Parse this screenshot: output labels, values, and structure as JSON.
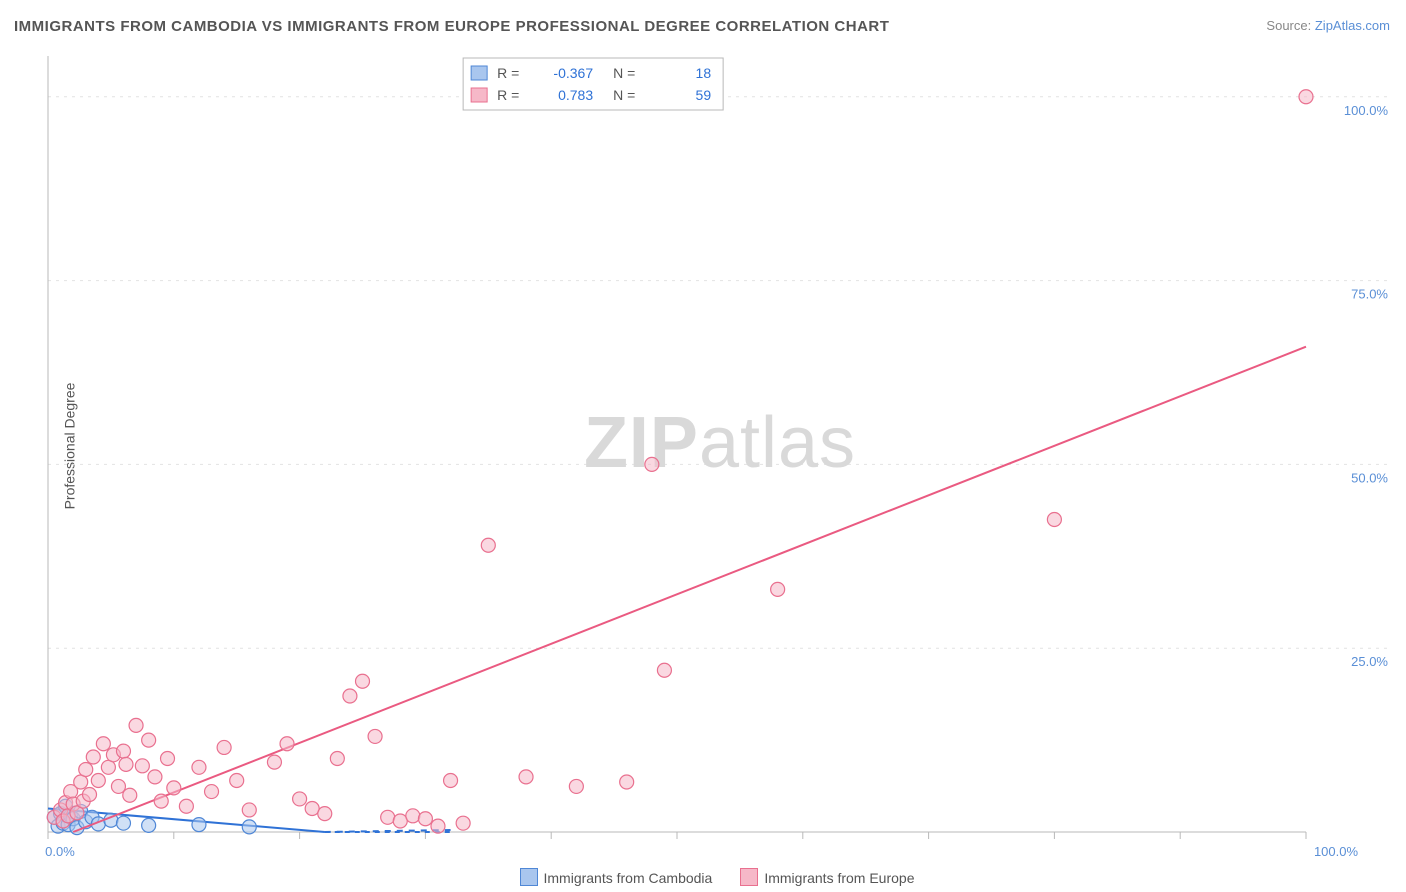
{
  "title": "IMMIGRANTS FROM CAMBODIA VS IMMIGRANTS FROM EUROPE PROFESSIONAL DEGREE CORRELATION CHART",
  "source_label": "Source:",
  "source_link": "ZipAtlas.com",
  "ylabel": "Professional Degree",
  "watermark": "ZIPatlas",
  "chart": {
    "type": "scatter",
    "xlim": [
      0,
      100
    ],
    "ylim": [
      0,
      105
    ],
    "x_major_ticks": [
      0,
      10,
      20,
      30,
      40,
      50,
      60,
      70,
      80,
      90,
      100
    ],
    "y_gridlines": [
      0,
      25,
      50,
      75,
      100
    ],
    "x_tick_labels": {
      "0": "0.0%",
      "100": "100.0%"
    },
    "y_tick_labels": {
      "25": "25.0%",
      "50": "50.0%",
      "75": "75.0%",
      "100": "100.0%"
    },
    "background_color": "#ffffff",
    "grid_color": "#e2e2e2",
    "axis_color": "#b8b8b8",
    "text_color": "#555555",
    "link_color": "#5a8fd6",
    "marker_radius": 7,
    "marker_stroke_width": 1.2,
    "series": [
      {
        "name": "Immigrants from Cambodia",
        "fill": "#a9c6ee",
        "fill_opacity": 0.55,
        "stroke": "#4f87d6",
        "r": -0.367,
        "n": 18,
        "trend": {
          "x1": 0,
          "y1": 3.2,
          "x2": 22,
          "y2": 0,
          "dashed_to_x": 32,
          "color": "#2f72d6",
          "width": 2
        },
        "points": [
          [
            0.5,
            2
          ],
          [
            0.8,
            0.8
          ],
          [
            1,
            2.5
          ],
          [
            1.2,
            1.2
          ],
          [
            1.4,
            3.5
          ],
          [
            1.6,
            1
          ],
          [
            1.8,
            2.2
          ],
          [
            2,
            1.8
          ],
          [
            2.3,
            0.6
          ],
          [
            2.6,
            2.8
          ],
          [
            3,
            1.4
          ],
          [
            3.5,
            2
          ],
          [
            4,
            1.1
          ],
          [
            5,
            1.6
          ],
          [
            6,
            1.2
          ],
          [
            8,
            0.9
          ],
          [
            12,
            1
          ],
          [
            16,
            0.7
          ]
        ]
      },
      {
        "name": "Immigrants from Europe",
        "fill": "#f6b8c8",
        "fill_opacity": 0.55,
        "stroke": "#e9708f",
        "r": 0.783,
        "n": 59,
        "trend": {
          "x1": 2,
          "y1": 0,
          "x2": 100,
          "y2": 66,
          "color": "#ea5a81",
          "width": 2
        },
        "points": [
          [
            0.5,
            2
          ],
          [
            1,
            3
          ],
          [
            1.2,
            1.5
          ],
          [
            1.4,
            4
          ],
          [
            1.6,
            2.2
          ],
          [
            1.8,
            5.5
          ],
          [
            2,
            3.8
          ],
          [
            2.3,
            2.6
          ],
          [
            2.6,
            6.8
          ],
          [
            2.8,
            4.2
          ],
          [
            3,
            8.5
          ],
          [
            3.3,
            5.1
          ],
          [
            3.6,
            10.2
          ],
          [
            4,
            7
          ],
          [
            4.4,
            12
          ],
          [
            4.8,
            8.8
          ],
          [
            5.2,
            10.5
          ],
          [
            5.6,
            6.2
          ],
          [
            6,
            11
          ],
          [
            6.5,
            5
          ],
          [
            7,
            14.5
          ],
          [
            7.5,
            9
          ],
          [
            8,
            12.5
          ],
          [
            8.5,
            7.5
          ],
          [
            9,
            4.2
          ],
          [
            9.5,
            10
          ],
          [
            10,
            6
          ],
          [
            11,
            3.5
          ],
          [
            12,
            8.8
          ],
          [
            13,
            5.5
          ],
          [
            14,
            11.5
          ],
          [
            15,
            7
          ],
          [
            16,
            3
          ],
          [
            18,
            9.5
          ],
          [
            19,
            12
          ],
          [
            20,
            4.5
          ],
          [
            21,
            3.2
          ],
          [
            22,
            2.5
          ],
          [
            23,
            10
          ],
          [
            24,
            18.5
          ],
          [
            25,
            20.5
          ],
          [
            26,
            13
          ],
          [
            27,
            2
          ],
          [
            28,
            1.5
          ],
          [
            29,
            2.2
          ],
          [
            30,
            1.8
          ],
          [
            31,
            0.8
          ],
          [
            32,
            7
          ],
          [
            33,
            1.2
          ],
          [
            35,
            39
          ],
          [
            38,
            7.5
          ],
          [
            42,
            6.2
          ],
          [
            46,
            6.8
          ],
          [
            48,
            50
          ],
          [
            49,
            22
          ],
          [
            58,
            33
          ],
          [
            80,
            42.5
          ],
          [
            100,
            100
          ],
          [
            6.2,
            9.2
          ]
        ]
      }
    ]
  },
  "legend_top": {
    "rows": [
      {
        "swatch_fill": "#a9c6ee",
        "swatch_stroke": "#4f87d6",
        "r_label": "R =",
        "r_value": "-0.367",
        "n_label": "N =",
        "n_value": "18"
      },
      {
        "swatch_fill": "#f6b8c8",
        "swatch_stroke": "#e9708f",
        "r_label": "R =",
        "r_value": "0.783",
        "n_label": "N =",
        "n_value": "59"
      }
    ],
    "value_color": "#2f72d6",
    "label_color": "#555555",
    "border_color": "#b8b8b8"
  },
  "legend_bottom": {
    "items": [
      {
        "fill": "#a9c6ee",
        "stroke": "#4f87d6",
        "label": "Immigrants from Cambodia"
      },
      {
        "fill": "#f6b8c8",
        "stroke": "#e9708f",
        "label": "Immigrants from Europe"
      }
    ]
  }
}
